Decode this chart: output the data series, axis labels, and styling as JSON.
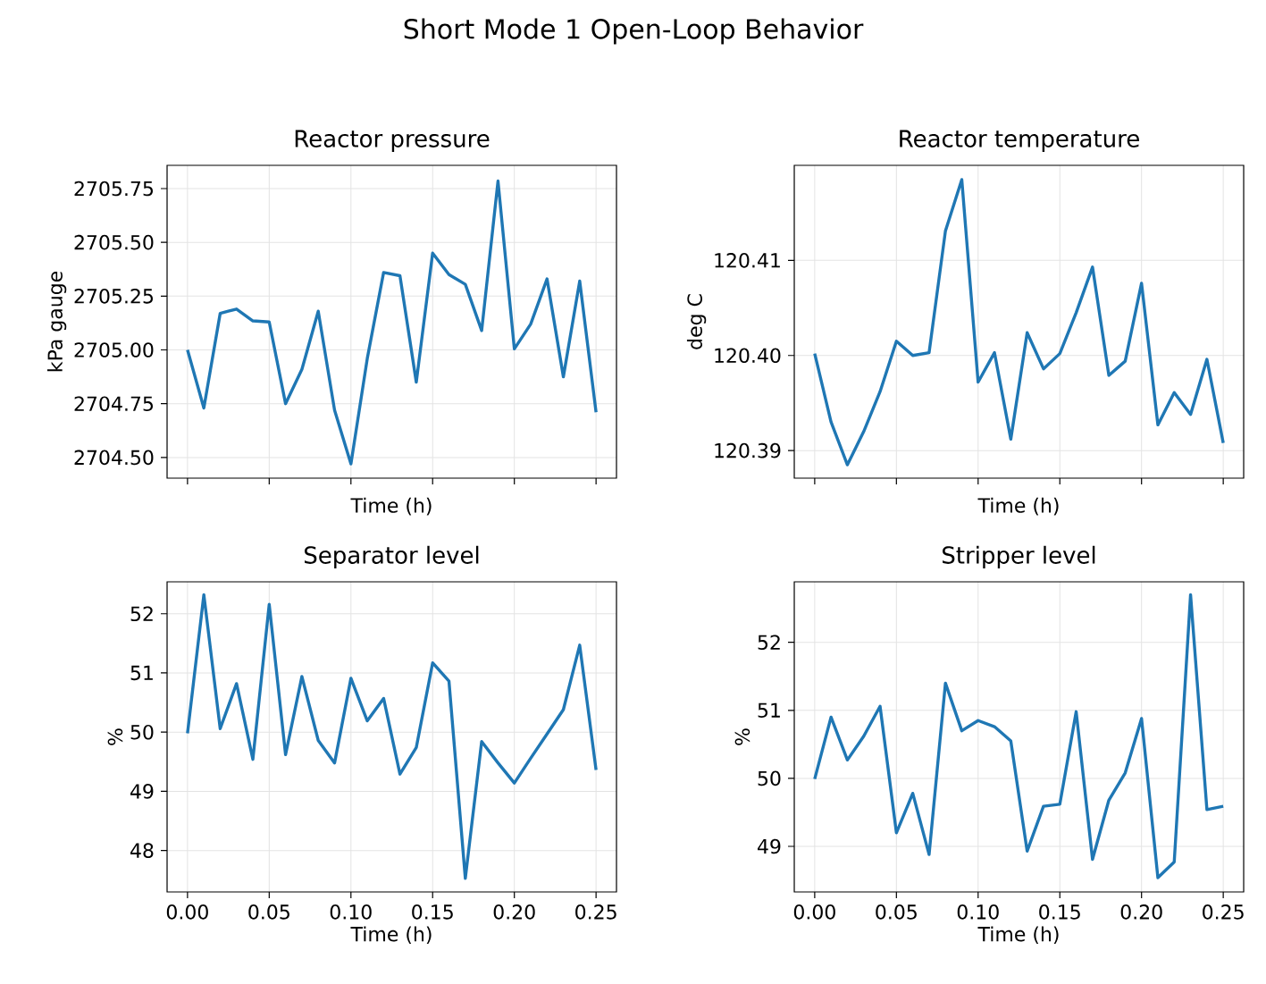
{
  "chart_data": [
    {
      "type": "line",
      "title": "Reactor pressure",
      "xlabel": "Time (h)",
      "ylabel": "kPa gauge",
      "annotations": [
        "Short Mode 1 Open-Loop Behavior"
      ],
      "color": "#1f77b4",
      "grid": true,
      "tick_labels": "y",
      "x": [
        0,
        0.01,
        0.02,
        0.03,
        0.04,
        0.05,
        0.06,
        0.07,
        0.08,
        0.09,
        0.1,
        0.11,
        0.12,
        0.13,
        0.14,
        0.15,
        0.16,
        0.17,
        0.18,
        0.19,
        0.2,
        0.21,
        0.22,
        0.23,
        0.24,
        0.25
      ],
      "values": [
        2705.0,
        2704.73,
        2705.17,
        2705.19,
        2705.135,
        2705.13,
        2704.75,
        2704.91,
        2705.18,
        2704.72,
        2704.47,
        2704.96,
        2705.36,
        2705.345,
        2704.85,
        2705.45,
        2705.35,
        2705.305,
        2705.09,
        2705.785,
        2705.005,
        2705.12,
        2705.33,
        2704.875,
        2705.32,
        2704.71
      ],
      "xlim": [
        -0.0125,
        0.2625
      ],
      "ylim": [
        2704.404,
        2705.858
      ],
      "xticks": [
        {
          "value": 0,
          "label": null
        },
        {
          "value": 0.05,
          "label": null
        },
        {
          "value": 0.1,
          "label": null
        },
        {
          "value": 0.15,
          "label": null
        },
        {
          "value": 0.2,
          "label": null
        },
        {
          "value": 0.25,
          "label": null
        }
      ],
      "yticks": [
        {
          "value": 2704.5,
          "label": "2704.50"
        },
        {
          "value": 2704.75,
          "label": "2704.75"
        },
        {
          "value": 2705,
          "label": "2705.00"
        },
        {
          "value": 2705.25,
          "label": "2705.25"
        },
        {
          "value": 2705.5,
          "label": "2705.50"
        },
        {
          "value": 2705.75,
          "label": "2705.75"
        }
      ]
    },
    {
      "type": "line",
      "title": "Reactor temperature",
      "xlabel": "Time (h)",
      "ylabel": "deg C",
      "color": "#1f77b4",
      "grid": true,
      "tick_labels": "y",
      "x": [
        0,
        0.01,
        0.02,
        0.03,
        0.04,
        0.05,
        0.06,
        0.07,
        0.08,
        0.09,
        0.1,
        0.11,
        0.12,
        0.13,
        0.14,
        0.15,
        0.16,
        0.17,
        0.18,
        0.19,
        0.2,
        0.21,
        0.22,
        0.23,
        0.24,
        0.25
      ],
      "values": [
        120.4002,
        120.393,
        120.3885,
        120.392,
        120.3962,
        120.4015,
        120.4,
        120.4003,
        120.4131,
        120.4185,
        120.3972,
        120.4003,
        120.3912,
        120.4024,
        120.3986,
        120.4002,
        120.4045,
        120.4093,
        120.3979,
        120.3994,
        120.4076,
        120.3927,
        120.3961,
        120.3938,
        120.3996,
        120.3908
      ],
      "xlim": [
        -0.0125,
        0.2625
      ],
      "ylim": [
        120.3871,
        120.42
      ],
      "xticks": [
        {
          "value": 0,
          "label": null
        },
        {
          "value": 0.05,
          "label": null
        },
        {
          "value": 0.1,
          "label": null
        },
        {
          "value": 0.15,
          "label": null
        },
        {
          "value": 0.2,
          "label": null
        },
        {
          "value": 0.25,
          "label": null
        }
      ],
      "yticks": [
        120.39,
        {
          "value": 120.4,
          "label": "120.40"
        },
        120.41
      ]
    },
    {
      "type": "line",
      "title": "Separator level",
      "xlabel": "Time (h)",
      "ylabel": "%",
      "color": "#1f77b4",
      "grid": true,
      "x": [
        0,
        0.01,
        0.02,
        0.03,
        0.04,
        0.05,
        0.06,
        0.07,
        0.08,
        0.09,
        0.1,
        0.11,
        0.12,
        0.13,
        0.14,
        0.15,
        0.16,
        0.17,
        0.18,
        0.19,
        0.2,
        0.21,
        0.22,
        0.23,
        0.24,
        0.25
      ],
      "values": [
        49.98,
        52.32,
        50.06,
        50.82,
        49.54,
        52.16,
        49.62,
        50.94,
        49.86,
        49.48,
        50.91,
        50.19,
        50.57,
        49.29,
        49.74,
        51.17,
        50.86,
        47.53,
        49.84,
        49.48,
        49.14,
        49.56,
        49.97,
        50.38,
        51.47,
        49.36
      ],
      "xlim": [
        -0.0125,
        0.2625
      ],
      "ylim": [
        47.3,
        52.54
      ],
      "xticks": [
        {
          "value": 0,
          "label": "0.00"
        },
        {
          "value": 0.05,
          "label": "0.05"
        },
        {
          "value": 0.1,
          "label": "0.10"
        },
        {
          "value": 0.15,
          "label": "0.15"
        },
        {
          "value": 0.2,
          "label": "0.20"
        },
        {
          "value": 0.25,
          "label": "0.25"
        }
      ],
      "yticks": [
        48,
        49,
        50,
        51,
        52
      ]
    },
    {
      "type": "line",
      "title": "Stripper level",
      "xlabel": "Time (h)",
      "ylabel": "%",
      "color": "#1f77b4",
      "grid": true,
      "x": [
        0,
        0.01,
        0.02,
        0.03,
        0.04,
        0.05,
        0.06,
        0.07,
        0.08,
        0.09,
        0.1,
        0.11,
        0.12,
        0.13,
        0.14,
        0.15,
        0.16,
        0.17,
        0.18,
        0.19,
        0.2,
        0.21,
        0.22,
        0.23,
        0.24,
        0.25
      ],
      "values": [
        49.99,
        50.9,
        50.27,
        50.62,
        51.06,
        49.2,
        49.78,
        48.88,
        51.4,
        50.7,
        50.85,
        50.76,
        50.55,
        48.93,
        49.59,
        49.62,
        50.98,
        48.81,
        49.68,
        50.08,
        50.88,
        48.54,
        48.77,
        52.7,
        49.54,
        49.59
      ],
      "xlim": [
        -0.0125,
        0.2625
      ],
      "ylim": [
        48.33,
        52.89
      ],
      "xticks": [
        {
          "value": 0,
          "label": "0.00"
        },
        {
          "value": 0.05,
          "label": "0.05"
        },
        {
          "value": 0.1,
          "label": "0.10"
        },
        {
          "value": 0.15,
          "label": "0.15"
        },
        {
          "value": 0.2,
          "label": "0.20"
        },
        {
          "value": 0.25,
          "label": "0.25"
        }
      ],
      "yticks": [
        49,
        50,
        51,
        52
      ]
    }
  ]
}
